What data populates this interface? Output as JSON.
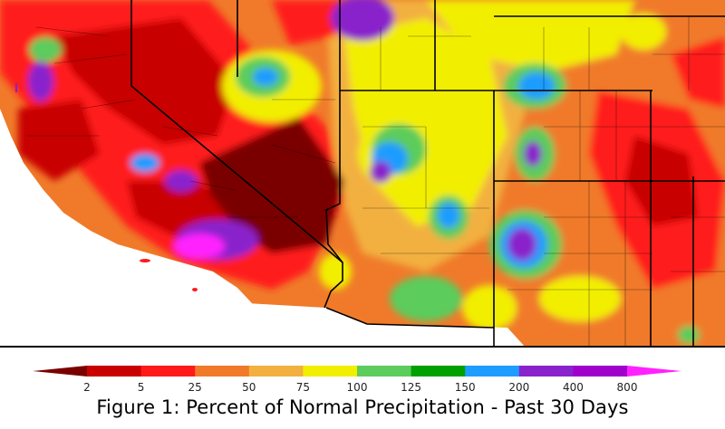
{
  "caption": "Figure 1: Percent of Normal Precipitation - Past 30 Days",
  "legend": {
    "breaks": [
      "2",
      "5",
      "25",
      "50",
      "75",
      "100",
      "125",
      "150",
      "200",
      "400",
      "800"
    ],
    "colors": [
      "#7a0000",
      "#c80000",
      "#ff1a1a",
      "#f07a2a",
      "#f2b040",
      "#f2ee00",
      "#5ccc5c",
      "#00a000",
      "#1e9cff",
      "#8a22cc",
      "#a000cc",
      "#ff22ff"
    ]
  },
  "map": {
    "region": "Southwestern United States",
    "color_scale": "percent-of-normal precipitation"
  }
}
